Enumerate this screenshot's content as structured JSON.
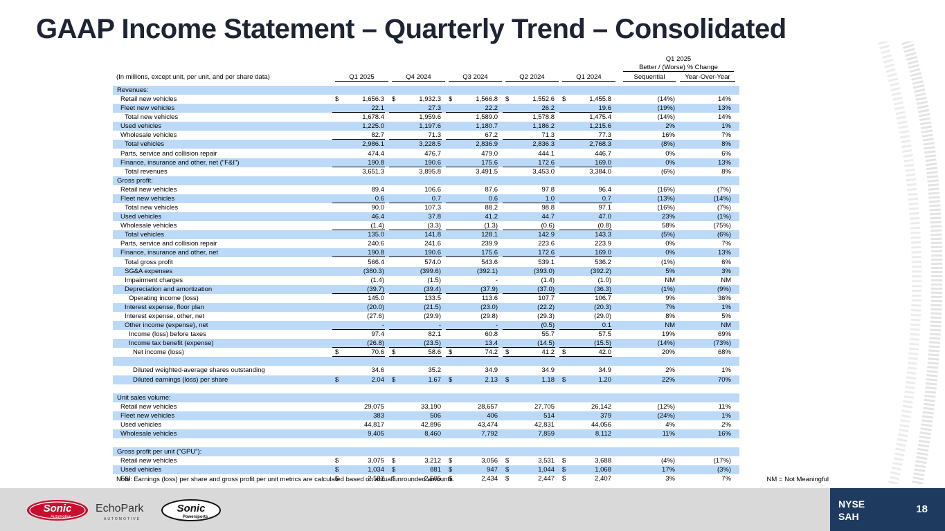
{
  "title": "GAAP Income Statement – Quarterly Trend – Consolidated",
  "header": {
    "units_note": "(In millions, except unit, per unit, and per share data)",
    "group_q": "Q1 2025",
    "group_change": "Better / (Worse) % Change",
    "columns": [
      "Q1 2025",
      "Q4 2024",
      "Q3 2024",
      "Q2 2024",
      "Q1 2024",
      "Sequential",
      "Year-Over-Year"
    ]
  },
  "rows": [
    {
      "label": "Revenues:",
      "indent": 0,
      "shade": true,
      "vals": []
    },
    {
      "label": "Retail new vehicles",
      "indent": 1,
      "shade": false,
      "dollar": true,
      "vals": [
        "1,656.3",
        "1,932.3",
        "1,566.8",
        "1,552.6",
        "1,455.8",
        "(14%)",
        "14%"
      ]
    },
    {
      "label": "Fleet new vehicles",
      "indent": 1,
      "shade": true,
      "ul": true,
      "vals": [
        "22.1",
        "27.3",
        "22.2",
        "26.2",
        "19.6",
        "(19%)",
        "13%"
      ]
    },
    {
      "label": "Total new vehicles",
      "indent": 2,
      "shade": false,
      "vals": [
        "1,678.4",
        "1,959.6",
        "1,589.0",
        "1,578.8",
        "1,475.4",
        "(14%)",
        "14%"
      ]
    },
    {
      "label": "Used vehicles",
      "indent": 1,
      "shade": true,
      "vals": [
        "1,225.0",
        "1,197.6",
        "1,180.7",
        "1,186.2",
        "1,215.6",
        "2%",
        "1%"
      ]
    },
    {
      "label": "Wholesale vehicles",
      "indent": 1,
      "shade": false,
      "ul": true,
      "vals": [
        "82.7",
        "71.3",
        "67.2",
        "71.3",
        "77.3",
        "16%",
        "7%"
      ]
    },
    {
      "label": "Total vehicles",
      "indent": 2,
      "shade": true,
      "vals": [
        "2,986.1",
        "3,228.5",
        "2,836.9",
        "2,836.3",
        "2,768.3",
        "(8%)",
        "8%"
      ]
    },
    {
      "label": "Parts, service and collision repair",
      "indent": 1,
      "shade": false,
      "vals": [
        "474.4",
        "476.7",
        "479.0",
        "444.1",
        "446.7",
        "0%",
        "6%"
      ]
    },
    {
      "label": "Finance, insurance and other, net (\"F&I\")",
      "indent": 1,
      "shade": true,
      "ul": true,
      "vals": [
        "190.8",
        "190.6",
        "175.6",
        "172.6",
        "169.0",
        "0%",
        "13%"
      ]
    },
    {
      "label": "Total revenues",
      "indent": 2,
      "shade": false,
      "vals": [
        "3,651.3",
        "3,895.8",
        "3,491.5",
        "3,453.0",
        "3,384.0",
        "(6%)",
        "8%"
      ]
    },
    {
      "label": "Gross profit:",
      "indent": 0,
      "shade": true,
      "vals": []
    },
    {
      "label": "Retail new vehicles",
      "indent": 1,
      "shade": false,
      "vals": [
        "89.4",
        "106.6",
        "87.6",
        "97.8",
        "96.4",
        "(16%)",
        "(7%)"
      ]
    },
    {
      "label": "Fleet new vehicles",
      "indent": 1,
      "shade": true,
      "ul": true,
      "vals": [
        "0.6",
        "0.7",
        "0.6",
        "1.0",
        "0.7",
        "(13%)",
        "(14%)"
      ]
    },
    {
      "label": "Total new vehicles",
      "indent": 2,
      "shade": false,
      "vals": [
        "90.0",
        "107.3",
        "88.2",
        "98.8",
        "97.1",
        "(16%)",
        "(7%)"
      ]
    },
    {
      "label": "Used vehicles",
      "indent": 1,
      "shade": true,
      "vals": [
        "46.4",
        "37.8",
        "41.2",
        "44.7",
        "47.0",
        "23%",
        "(1%)"
      ]
    },
    {
      "label": "Wholesale vehicles",
      "indent": 1,
      "shade": false,
      "ul": true,
      "vals": [
        "(1.4)",
        "(3.3)",
        "(1.3)",
        "(0.6)",
        "(0.8)",
        "58%",
        "(75%)"
      ]
    },
    {
      "label": "Total vehicles",
      "indent": 2,
      "shade": true,
      "vals": [
        "135.0",
        "141.8",
        "128.1",
        "142.9",
        "143.3",
        "(5%)",
        "(6%)"
      ]
    },
    {
      "label": "Parts, service and collision repair",
      "indent": 1,
      "shade": false,
      "vals": [
        "240.6",
        "241.6",
        "239.9",
        "223.6",
        "223.9",
        "0%",
        "7%"
      ]
    },
    {
      "label": "Finance, insurance and other, net",
      "indent": 1,
      "shade": true,
      "ul": true,
      "vals": [
        "190.8",
        "190.6",
        "175.6",
        "172.6",
        "169.0",
        "0%",
        "13%"
      ]
    },
    {
      "label": "Total gross profit",
      "indent": 2,
      "shade": false,
      "vals": [
        "566.4",
        "574.0",
        "543.6",
        "539.1",
        "536.2",
        "(1%)",
        "6%"
      ]
    },
    {
      "label": "SG&A expenses",
      "indent": 2,
      "shade": true,
      "vals": [
        "(380.3)",
        "(399.6)",
        "(392.1)",
        "(393.0)",
        "(392.2)",
        "5%",
        "3%"
      ]
    },
    {
      "label": "Impairment charges",
      "indent": 2,
      "shade": false,
      "vals": [
        "(1.4)",
        "(1.5)",
        "-",
        "(1.4)",
        "(1.0)",
        "NM",
        "NM"
      ]
    },
    {
      "label": "Depreciation and amortization",
      "indent": 2,
      "shade": true,
      "ul": true,
      "vals": [
        "(39.7)",
        "(39.4)",
        "(37.9)",
        "(37.0)",
        "(36.3)",
        "(1%)",
        "(9%)"
      ]
    },
    {
      "label": "Operating income (loss)",
      "indent": 3,
      "shade": false,
      "vals": [
        "145.0",
        "133.5",
        "113.6",
        "107.7",
        "106.7",
        "9%",
        "36%"
      ]
    },
    {
      "label": "Interest expense, floor plan",
      "indent": 2,
      "shade": true,
      "vals": [
        "(20.0)",
        "(21.5)",
        "(23.0)",
        "(22.2)",
        "(20.3)",
        "7%",
        "1%"
      ]
    },
    {
      "label": "Interest expense, other, net",
      "indent": 2,
      "shade": false,
      "vals": [
        "(27.6)",
        "(29.9)",
        "(29.8)",
        "(29.3)",
        "(29.0)",
        "8%",
        "5%"
      ]
    },
    {
      "label": "Other income (expense), net",
      "indent": 2,
      "shade": true,
      "ul": true,
      "vals": [
        "-",
        "-",
        "-",
        "(0.5)",
        "0.1",
        "NM",
        "NM"
      ]
    },
    {
      "label": "Income (loss) before taxes",
      "indent": 3,
      "shade": false,
      "vals": [
        "97.4",
        "82.1",
        "60.8",
        "55.7",
        "57.5",
        "19%",
        "69%"
      ]
    },
    {
      "label": "Income tax benefit (expense)",
      "indent": 3,
      "shade": true,
      "ul": true,
      "vals": [
        "(26.8)",
        "(23.5)",
        "13.4",
        "(14.5)",
        "(15.5)",
        "(14%)",
        "(73%)"
      ]
    },
    {
      "label": "Net income (loss)",
      "indent": 4,
      "shade": false,
      "dollar": true,
      "dbl": true,
      "vals": [
        "70.6",
        "58.6",
        "74.2",
        "41.2",
        "42.0",
        "20%",
        "68%"
      ]
    },
    {
      "label": "",
      "indent": 0,
      "shade": true,
      "spacer": true,
      "vals": []
    },
    {
      "label": "Diluted weighted-average shares outstanding",
      "indent": 4,
      "shade": false,
      "vals": [
        "34.6",
        "35.2",
        "34.9",
        "34.9",
        "34.9",
        "2%",
        "1%"
      ]
    },
    {
      "label": "Diluted earnings (loss) per share",
      "indent": 4,
      "shade": true,
      "dollar": true,
      "vals": [
        "2.04",
        "1.67",
        "2.13",
        "1.18",
        "1.20",
        "22%",
        "70%"
      ]
    },
    {
      "label": "",
      "indent": 0,
      "shade": false,
      "spacer": true,
      "vals": []
    },
    {
      "label": "Unit sales volume:",
      "indent": 0,
      "shade": true,
      "vals": []
    },
    {
      "label": "Retail new vehicles",
      "indent": 1,
      "shade": false,
      "vals": [
        "29,075",
        "33,190",
        "28,657",
        "27,705",
        "26,142",
        "(12%)",
        "11%"
      ]
    },
    {
      "label": "Fleet new vehicles",
      "indent": 1,
      "shade": true,
      "vals": [
        "383",
        "506",
        "406",
        "514",
        "379",
        "(24%)",
        "1%"
      ]
    },
    {
      "label": "Used vehicles",
      "indent": 1,
      "shade": false,
      "vals": [
        "44,817",
        "42,896",
        "43,474",
        "42,831",
        "44,056",
        "4%",
        "2%"
      ]
    },
    {
      "label": "Wholesale vehicles",
      "indent": 1,
      "shade": true,
      "vals": [
        "9,405",
        "8,460",
        "7,792",
        "7,859",
        "8,112",
        "11%",
        "16%"
      ]
    },
    {
      "label": "",
      "indent": 0,
      "shade": false,
      "spacer": true,
      "vals": []
    },
    {
      "label": "Gross profit per unit (\"GPU\"):",
      "indent": 0,
      "shade": true,
      "vals": []
    },
    {
      "label": "Retail new vehicles",
      "indent": 1,
      "shade": false,
      "dollar": true,
      "vals": [
        "3,075",
        "3,212",
        "3,056",
        "3,531",
        "3,688",
        "(4%)",
        "(17%)"
      ]
    },
    {
      "label": "Used vehicles",
      "indent": 1,
      "shade": true,
      "dollar": true,
      "vals": [
        "1,034",
        "881",
        "947",
        "1,044",
        "1,068",
        "17%",
        "(3%)"
      ]
    },
    {
      "label": "F&I",
      "indent": 1,
      "shade": false,
      "dollar": true,
      "vals": [
        "2,582",
        "2,505",
        "2,434",
        "2,447",
        "2,407",
        "3%",
        "7%"
      ]
    }
  ],
  "note": "Note: Earnings (loss) per share and gross profit per unit metrics are calculated based on actual unrounded amounts.",
  "nm_note": "NM = Not Meaningful",
  "logos": {
    "sonic": "Sonic",
    "sonic_sub": "Automotive",
    "echopark": "EchoPark",
    "echopark_sub": "AUTOMOTIVE",
    "powersports": "Sonic",
    "powersports_sub": "Powersports"
  },
  "footer": {
    "exchange_line1": "NYSE",
    "exchange_line2": "SAH",
    "page": "18"
  },
  "colors": {
    "row_shade": "#bcdaf7",
    "title": "#1d2433",
    "footer_bar": "#d9d9d9",
    "footer_navy": "#1e3a5f",
    "sonic_red": "#c8102e"
  }
}
